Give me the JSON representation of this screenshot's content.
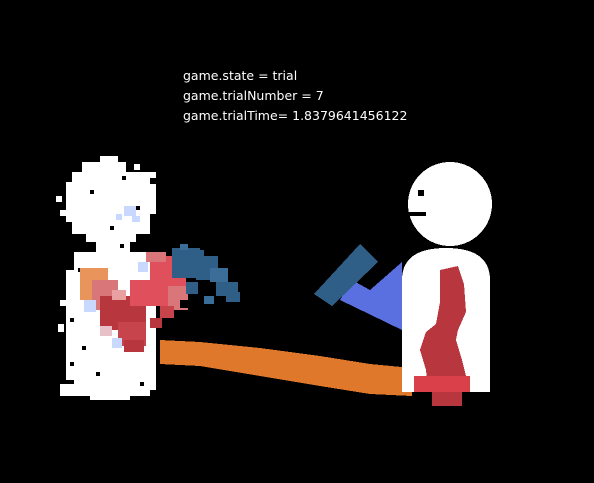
{
  "debug": {
    "state_line": "game.state = trial",
    "trial_number_line": "game.trialNumber = 7",
    "trial_time_line": "game.trialTime= 1.8379641456122"
  },
  "colors": {
    "background": "#000000",
    "figure_white": "#ffffff",
    "stick_orange": "#e0782c",
    "arm_blue": "#5a6fe0",
    "paddle_blue": "#2f5f86",
    "body_red": "#b8373f",
    "splash_pink": "#e0505c",
    "splash_light_blue": "#c8d8ff",
    "splash_orange": "#e8945a"
  }
}
